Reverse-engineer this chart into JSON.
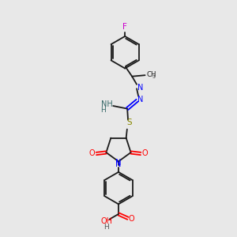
{
  "bg_color": "#e8e8e8",
  "bond_color": "#1a1a1a",
  "figsize": [
    3.0,
    3.0
  ],
  "dpi": 100,
  "xlim": [
    0,
    10
  ],
  "ylim": [
    0,
    10
  ]
}
